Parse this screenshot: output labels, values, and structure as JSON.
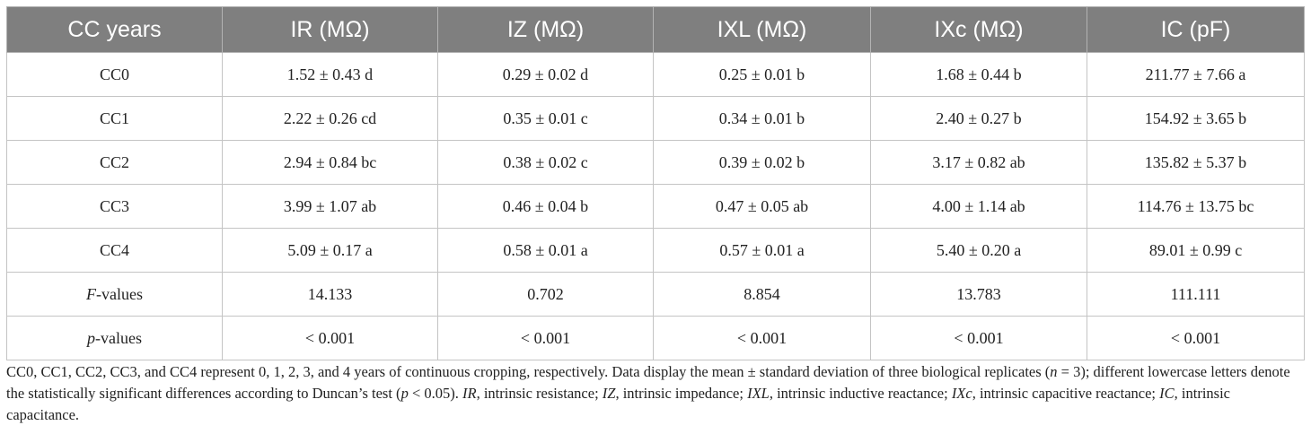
{
  "table": {
    "headers": [
      "CC years",
      "IR (MΩ)",
      "IZ (MΩ)",
      "IXL (MΩ)",
      "IXc (MΩ)",
      "IC (pF)"
    ],
    "rows": [
      [
        "CC0",
        "1.52 ± 0.43 d",
        "0.29 ± 0.02 d",
        "0.25 ± 0.01 b",
        "1.68 ± 0.44 b",
        "211.77 ± 7.66 a"
      ],
      [
        "CC1",
        "2.22 ± 0.26 cd",
        "0.35 ± 0.01 c",
        "0.34 ± 0.01 b",
        "2.40 ± 0.27 b",
        "154.92 ± 3.65 b"
      ],
      [
        "CC2",
        "2.94 ± 0.84 bc",
        "0.38 ± 0.02 c",
        "0.39 ± 0.02 b",
        "3.17 ± 0.82 ab",
        "135.82 ± 5.37 b"
      ],
      [
        "CC3",
        "3.99 ± 1.07 ab",
        "0.46 ± 0.04 b",
        "0.47 ± 0.05 ab",
        "4.00 ± 1.14 ab",
        "114.76 ± 13.75 bc"
      ],
      [
        "CC4",
        "5.09 ± 0.17 a",
        "0.58 ± 0.01 a",
        "0.57 ± 0.01 a",
        "5.40 ± 0.20 a",
        "89.01 ± 0.99 c"
      ]
    ],
    "f_row": {
      "label_italic": "F",
      "label_rest": "-values",
      "values": [
        "14.133",
        "0.702",
        "8.854",
        "13.783",
        "111.111"
      ]
    },
    "p_row": {
      "label_italic": "p",
      "label_rest": "-values",
      "values": [
        "< 0.001",
        "< 0.001",
        "< 0.001",
        "< 0.001",
        "< 0.001"
      ]
    }
  },
  "footnote": {
    "s1": "CC0, CC1, CC2, CC3, and CC4 represent 0, 1, 2, 3, and 4 years of continuous cropping, respectively. Data display the mean ± standard deviation of three biological replicates (",
    "n_var": "n",
    "s2": " = 3); different lowercase letters denote the statistically significant differences according to Duncan’s test (",
    "p_var": "p",
    "s3": " < 0.05). ",
    "ir_abbr": "IR",
    "ir_def": ", intrinsic resistance; ",
    "iz_abbr": "IZ",
    "iz_def": ", intrinsic impedance; ",
    "ixl_abbr": "IXL",
    "ixl_def": ", intrinsic inductive reactance; ",
    "ixc_abbr": "IXc",
    "ixc_def": ", intrinsic capacitive reactance; ",
    "ic_abbr": "IC",
    "ic_def": ", intrinsic capacitance."
  }
}
